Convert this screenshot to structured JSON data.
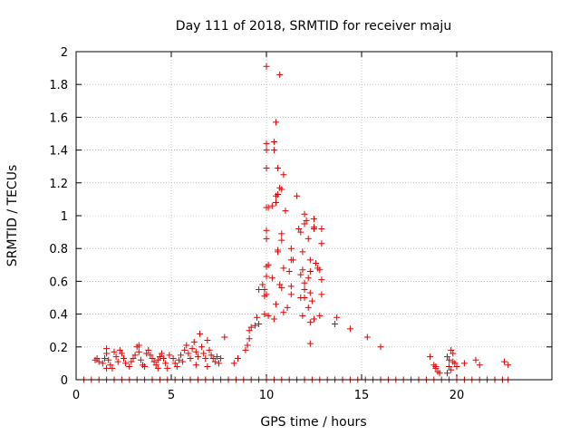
{
  "chart_data": {
    "type": "scatter",
    "title": "Day 111 of 2018, SRMTID for receiver maju",
    "xlabel": "GPS time / hours",
    "ylabel": "SRMTID / TECUs",
    "xlim": [
      0,
      25
    ],
    "ylim": [
      0,
      2
    ],
    "xticks": [
      0,
      5,
      10,
      15,
      20
    ],
    "xtick_labels": [
      "0",
      "5",
      "10",
      "15",
      "20"
    ],
    "yticks": [
      0,
      0.2,
      0.4,
      0.6,
      0.8,
      1,
      1.2,
      1.4,
      1.6,
      1.8,
      2
    ],
    "ytick_labels": [
      "0",
      "0.2",
      "0.4",
      "0.6",
      "0.8",
      "1",
      "1.2",
      "1.4",
      "1.6",
      "1.8",
      "2"
    ],
    "grid": true,
    "marker": "+",
    "color": "#dd0000",
    "series": [
      {
        "name": "SRMTID",
        "points": [
          [
            10.0,
            1.91
          ],
          [
            10.7,
            1.86
          ],
          [
            10.5,
            1.57
          ],
          [
            10.0,
            1.44
          ],
          [
            10.0,
            1.4
          ],
          [
            10.4,
            1.45
          ],
          [
            10.4,
            1.4
          ],
          [
            10.0,
            1.29
          ],
          [
            10.6,
            1.29
          ],
          [
            10.9,
            1.25
          ],
          [
            10.7,
            1.17
          ],
          [
            10.6,
            1.13
          ],
          [
            10.8,
            1.16
          ],
          [
            11.6,
            1.12
          ],
          [
            10.5,
            1.12
          ],
          [
            10.5,
            1.08
          ],
          [
            10.1,
            1.05
          ],
          [
            10.0,
            1.05
          ],
          [
            10.3,
            1.06
          ],
          [
            11.0,
            1.03
          ],
          [
            12.0,
            1.01
          ],
          [
            12.1,
            0.97
          ],
          [
            12.0,
            0.95
          ],
          [
            12.5,
            0.98
          ],
          [
            12.5,
            0.93
          ],
          [
            12.9,
            0.92
          ],
          [
            12.5,
            0.92
          ],
          [
            10.0,
            0.91
          ],
          [
            11.7,
            0.92
          ],
          [
            10.0,
            0.86
          ],
          [
            10.8,
            0.89
          ],
          [
            11.8,
            0.9
          ],
          [
            12.2,
            0.86
          ],
          [
            10.8,
            0.85
          ],
          [
            12.9,
            0.83
          ],
          [
            11.3,
            0.8
          ],
          [
            10.6,
            0.79
          ],
          [
            10.6,
            0.78
          ],
          [
            11.9,
            0.78
          ],
          [
            11.3,
            0.73
          ],
          [
            11.4,
            0.73
          ],
          [
            12.3,
            0.73
          ],
          [
            12.6,
            0.71
          ],
          [
            10.1,
            0.7
          ],
          [
            10.0,
            0.69
          ],
          [
            10.9,
            0.68
          ],
          [
            11.9,
            0.67
          ],
          [
            12.7,
            0.68
          ],
          [
            12.8,
            0.67
          ],
          [
            12.3,
            0.66
          ],
          [
            11.2,
            0.66
          ],
          [
            11.8,
            0.64
          ],
          [
            10.0,
            0.63
          ],
          [
            10.3,
            0.62
          ],
          [
            12.2,
            0.62
          ],
          [
            12.9,
            0.61
          ],
          [
            12.0,
            0.59
          ],
          [
            11.3,
            0.57
          ],
          [
            10.7,
            0.58
          ],
          [
            10.8,
            0.56
          ],
          [
            9.8,
            0.58
          ],
          [
            9.9,
            0.55
          ],
          [
            9.6,
            0.55
          ],
          [
            12.0,
            0.55
          ],
          [
            12.3,
            0.53
          ],
          [
            10.0,
            0.52
          ],
          [
            9.9,
            0.51
          ],
          [
            11.3,
            0.52
          ],
          [
            12.9,
            0.52
          ],
          [
            12.0,
            0.5
          ],
          [
            11.8,
            0.5
          ],
          [
            12.4,
            0.48
          ],
          [
            10.5,
            0.46
          ],
          [
            11.1,
            0.44
          ],
          [
            12.2,
            0.44
          ],
          [
            10.9,
            0.41
          ],
          [
            9.9,
            0.4
          ],
          [
            10.1,
            0.39
          ],
          [
            11.9,
            0.39
          ],
          [
            12.8,
            0.39
          ],
          [
            12.5,
            0.37
          ],
          [
            10.4,
            0.37
          ],
          [
            9.5,
            0.38
          ],
          [
            9.6,
            0.34
          ],
          [
            9.4,
            0.33
          ],
          [
            13.7,
            0.38
          ],
          [
            13.6,
            0.34
          ],
          [
            12.3,
            0.35
          ],
          [
            14.4,
            0.31
          ],
          [
            9.2,
            0.32
          ],
          [
            9.1,
            0.3
          ],
          [
            9.1,
            0.25
          ],
          [
            9.0,
            0.21
          ],
          [
            8.9,
            0.18
          ],
          [
            15.3,
            0.26
          ],
          [
            16.0,
            0.2
          ],
          [
            12.3,
            0.22
          ],
          [
            8.5,
            0.13
          ],
          [
            8.3,
            0.1
          ],
          [
            7.8,
            0.26
          ],
          [
            1.0,
            0.12
          ],
          [
            1.1,
            0.13
          ],
          [
            1.2,
            0.11
          ],
          [
            1.4,
            0.1
          ],
          [
            1.5,
            0.13
          ],
          [
            1.6,
            0.16
          ],
          [
            1.6,
            0.19
          ],
          [
            1.7,
            0.12
          ],
          [
            1.8,
            0.09
          ],
          [
            1.9,
            0.07
          ],
          [
            1.6,
            0.07
          ],
          [
            2.0,
            0.17
          ],
          [
            2.1,
            0.14
          ],
          [
            2.2,
            0.11
          ],
          [
            2.3,
            0.18
          ],
          [
            2.4,
            0.16
          ],
          [
            2.5,
            0.13
          ],
          [
            2.6,
            0.1
          ],
          [
            2.8,
            0.08
          ],
          [
            2.9,
            0.11
          ],
          [
            3.0,
            0.13
          ],
          [
            3.1,
            0.15
          ],
          [
            3.2,
            0.2
          ],
          [
            3.3,
            0.21
          ],
          [
            3.3,
            0.17
          ],
          [
            3.4,
            0.12
          ],
          [
            3.5,
            0.09
          ],
          [
            3.6,
            0.08
          ],
          [
            3.7,
            0.16
          ],
          [
            3.8,
            0.18
          ],
          [
            3.9,
            0.15
          ],
          [
            4.0,
            0.13
          ],
          [
            4.1,
            0.11
          ],
          [
            4.2,
            0.09
          ],
          [
            4.3,
            0.12
          ],
          [
            4.4,
            0.14
          ],
          [
            4.5,
            0.16
          ],
          [
            4.6,
            0.13
          ],
          [
            4.7,
            0.1
          ],
          [
            4.8,
            0.07
          ],
          [
            4.3,
            0.07
          ],
          [
            4.9,
            0.15
          ],
          [
            5.1,
            0.13
          ],
          [
            5.2,
            0.1
          ],
          [
            5.3,
            0.08
          ],
          [
            5.4,
            0.12
          ],
          [
            5.5,
            0.15
          ],
          [
            5.6,
            0.11
          ],
          [
            5.7,
            0.18
          ],
          [
            5.8,
            0.21
          ],
          [
            5.9,
            0.16
          ],
          [
            6.0,
            0.13
          ],
          [
            6.1,
            0.19
          ],
          [
            6.2,
            0.23
          ],
          [
            6.3,
            0.17
          ],
          [
            6.4,
            0.14
          ],
          [
            6.5,
            0.28
          ],
          [
            6.6,
            0.2
          ],
          [
            6.7,
            0.16
          ],
          [
            6.8,
            0.13
          ],
          [
            6.9,
            0.24
          ],
          [
            7.0,
            0.18
          ],
          [
            7.1,
            0.15
          ],
          [
            7.2,
            0.13
          ],
          [
            7.3,
            0.11
          ],
          [
            7.4,
            0.14
          ],
          [
            7.5,
            0.1
          ],
          [
            7.6,
            0.13
          ],
          [
            6.9,
            0.08
          ],
          [
            6.3,
            0.09
          ],
          [
            18.6,
            0.14
          ],
          [
            18.8,
            0.09
          ],
          [
            18.9,
            0.07
          ],
          [
            19.0,
            0.05
          ],
          [
            19.1,
            0.04
          ],
          [
            18.9,
            0.08
          ],
          [
            19.5,
            0.14
          ],
          [
            19.6,
            0.12
          ],
          [
            19.7,
            0.18
          ],
          [
            19.8,
            0.16
          ],
          [
            19.8,
            0.11
          ],
          [
            19.6,
            0.08
          ],
          [
            19.7,
            0.06
          ],
          [
            19.5,
            0.04
          ],
          [
            19.9,
            0.1
          ],
          [
            20.0,
            0.08
          ],
          [
            20.4,
            0.1
          ],
          [
            21.0,
            0.12
          ],
          [
            21.2,
            0.09
          ],
          [
            22.5,
            0.11
          ],
          [
            22.7,
            0.09
          ],
          [
            0.4,
            0.0
          ],
          [
            0.8,
            0.0
          ],
          [
            1.2,
            0.0
          ],
          [
            1.6,
            0.0
          ],
          [
            2.0,
            0.0
          ],
          [
            2.4,
            0.0
          ],
          [
            2.8,
            0.0
          ],
          [
            3.2,
            0.0
          ],
          [
            3.6,
            0.0
          ],
          [
            4.0,
            0.0
          ],
          [
            4.4,
            0.0
          ],
          [
            4.8,
            0.0
          ],
          [
            5.2,
            0.0
          ],
          [
            5.6,
            0.0
          ],
          [
            6.0,
            0.0
          ],
          [
            6.4,
            0.0
          ],
          [
            6.8,
            0.0
          ],
          [
            7.2,
            0.0
          ],
          [
            7.6,
            0.0
          ],
          [
            8.0,
            0.0
          ],
          [
            8.4,
            0.0
          ],
          [
            8.8,
            0.0
          ],
          [
            9.2,
            0.0
          ],
          [
            9.6,
            0.0
          ],
          [
            10.0,
            0.0
          ],
          [
            10.4,
            0.0
          ],
          [
            10.8,
            0.0
          ],
          [
            11.2,
            0.0
          ],
          [
            11.6,
            0.0
          ],
          [
            12.0,
            0.0
          ],
          [
            12.4,
            0.0
          ],
          [
            12.8,
            0.0
          ],
          [
            13.2,
            0.0
          ],
          [
            13.6,
            0.0
          ],
          [
            14.0,
            0.0
          ],
          [
            14.4,
            0.0
          ],
          [
            14.8,
            0.0
          ],
          [
            15.2,
            0.0
          ],
          [
            15.6,
            0.0
          ],
          [
            16.0,
            0.0
          ],
          [
            16.4,
            0.0
          ],
          [
            16.8,
            0.0
          ],
          [
            17.2,
            0.0
          ],
          [
            17.6,
            0.0
          ],
          [
            18.0,
            0.0
          ],
          [
            18.4,
            0.0
          ],
          [
            18.8,
            0.0
          ],
          [
            19.2,
            0.0
          ],
          [
            19.6,
            0.0
          ],
          [
            20.0,
            0.0
          ],
          [
            20.4,
            0.0
          ],
          [
            20.8,
            0.0
          ],
          [
            21.2,
            0.0
          ],
          [
            21.6,
            0.0
          ],
          [
            22.0,
            0.0
          ],
          [
            22.4,
            0.0
          ],
          [
            22.7,
            0.0
          ]
        ]
      }
    ]
  }
}
